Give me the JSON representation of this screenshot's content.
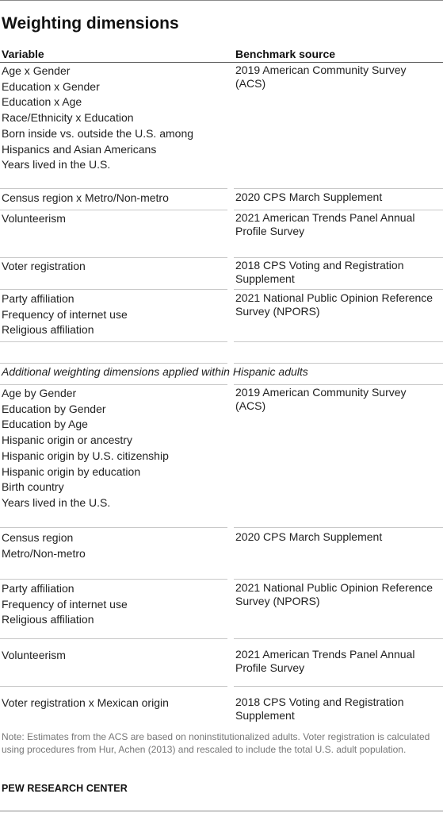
{
  "title": "Weighting dimensions",
  "headers": {
    "variable": "Variable",
    "source": "Benchmark source"
  },
  "rows": [
    {
      "vars": [
        "Age x Gender",
        "Education x Gender",
        "Education x Age",
        "Race/Ethnicity x Education",
        "Born inside vs. outside the U.S. among Hispanics and Asian Americans",
        "Years lived in the U.S."
      ],
      "source": "2019 American Community Survey (ACS)"
    },
    {
      "vars": [
        "Census region x Metro/Non-metro"
      ],
      "source": "2020 CPS March Supplement"
    },
    {
      "vars": [
        "Volunteerism"
      ],
      "source": "2021 American Trends Panel Annual Profile Survey"
    },
    {
      "vars": [
        "Voter registration"
      ],
      "source": "2018 CPS Voting and Registration Supplement"
    },
    {
      "vars": [
        "Party affiliation",
        "Frequency of internet use",
        "Religious affiliation"
      ],
      "source": "2021 National Public Opinion Reference Survey (NPORS)"
    }
  ],
  "section_label": "Additional weighting dimensions applied within Hispanic adults",
  "hispanic_rows": [
    {
      "vars": [
        "Age by Gender",
        "Education by Gender",
        "Education by Age",
        "Hispanic origin or ancestry",
        "Hispanic origin by U.S. citizenship",
        "Hispanic origin by education",
        "Birth country",
        "Years lived in the U.S."
      ],
      "source": "2019 American Community Survey (ACS)"
    },
    {
      "vars": [
        "Census region",
        "Metro/Non-metro"
      ],
      "source": "2020 CPS March Supplement"
    },
    {
      "vars": [
        "Party affiliation",
        "Frequency of internet use",
        "Religious affiliation"
      ],
      "source": "2021 National Public Opinion Reference Survey (NPORS)"
    },
    {
      "vars": [
        "Volunteerism"
      ],
      "source": "2021 American Trends Panel Annual Profile Survey"
    },
    {
      "vars": [
        "Voter registration x Mexican origin"
      ],
      "source": "2018 CPS Voting and Registration Supplement"
    }
  ],
  "note": "Note: Estimates from the ACS are based on noninstitutionalized adults. Voter registration is calculated using procedures from Hur, Achen (2013) and rescaled to include the total U.S. adult population.",
  "footer": "PEW RESEARCH CENTER"
}
